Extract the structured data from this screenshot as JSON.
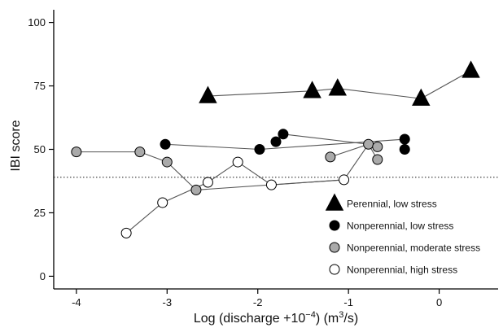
{
  "chart_data": {
    "type": "scatter",
    "title": "",
    "xlabel": "Log (discharge +10",
    "xlabel_sup": "−4",
    "xlabel_tail": ") (m",
    "xlabel_sup2": "3",
    "xlabel_end": "/s)",
    "ylabel": "IBI score",
    "xlim": [
      -4.25,
      0.65
    ],
    "ylim": [
      -5,
      105
    ],
    "x_ticks": [
      -4,
      -3,
      -2,
      -1,
      0
    ],
    "x_tick_labels": [
      "-4",
      "-3",
      "-2",
      "-1",
      "0"
    ],
    "y_ticks": [
      0,
      25,
      50,
      75,
      100
    ],
    "y_tick_labels": [
      "0",
      "25",
      "50",
      "75",
      "100"
    ],
    "reference_line": {
      "y": 39,
      "style": "dotted"
    },
    "grid": false,
    "legend_position": "bottom-right",
    "series": [
      {
        "name": "Perennial, low stress",
        "marker": "triangle",
        "fill": "#000000",
        "stroke": "#000000",
        "points": [
          {
            "x": -2.55,
            "y": 71
          },
          {
            "x": -1.4,
            "y": 73
          },
          {
            "x": -1.12,
            "y": 74
          },
          {
            "x": -0.2,
            "y": 70
          },
          {
            "x": 0.35,
            "y": 81
          }
        ]
      },
      {
        "name": "Nonperennial, low stress",
        "marker": "circle",
        "fill": "#000000",
        "stroke": "#000000",
        "points": [
          {
            "x": -3.02,
            "y": 52
          },
          {
            "x": -1.98,
            "y": 50
          },
          {
            "x": -1.8,
            "y": 53
          },
          {
            "x": -1.72,
            "y": 56
          },
          {
            "x": -0.38,
            "y": 54
          },
          {
            "x": -0.38,
            "y": 50
          }
        ]
      },
      {
        "name": "Nonperennial, moderate stress",
        "marker": "circle",
        "fill": "#aaaaaa",
        "stroke": "#000000",
        "points": [
          {
            "x": -4.0,
            "y": 49
          },
          {
            "x": -3.3,
            "y": 49
          },
          {
            "x": -3.0,
            "y": 45
          },
          {
            "x": -2.68,
            "y": 34
          },
          {
            "x": -1.2,
            "y": 47
          },
          {
            "x": -0.78,
            "y": 52
          },
          {
            "x": -0.68,
            "y": 51
          },
          {
            "x": -0.68,
            "y": 46
          }
        ]
      },
      {
        "name": "Nonperennial, high stress",
        "marker": "circle",
        "fill": "#ffffff",
        "stroke": "#000000",
        "points": [
          {
            "x": -3.45,
            "y": 17
          },
          {
            "x": -3.05,
            "y": 29
          },
          {
            "x": -2.55,
            "y": 37
          },
          {
            "x": -2.22,
            "y": 45
          },
          {
            "x": -1.85,
            "y": 36
          },
          {
            "x": -1.05,
            "y": 38
          }
        ]
      }
    ],
    "connectors": [
      {
        "color": "#555555",
        "points": [
          {
            "x": -2.55,
            "y": 71
          },
          {
            "x": -1.4,
            "y": 73
          },
          {
            "x": -1.12,
            "y": 74
          },
          {
            "x": -0.2,
            "y": 70
          },
          {
            "x": 0.35,
            "y": 81
          }
        ]
      },
      {
        "color": "#555555",
        "points": [
          {
            "x": -3.02,
            "y": 52
          },
          {
            "x": -1.98,
            "y": 50
          },
          {
            "x": -0.38,
            "y": 54
          }
        ]
      },
      {
        "color": "#555555",
        "points": [
          {
            "x": -1.8,
            "y": 53
          },
          {
            "x": -1.72,
            "y": 56
          },
          {
            "x": -0.78,
            "y": 52
          },
          {
            "x": -0.68,
            "y": 46
          }
        ]
      },
      {
        "color": "#555555",
        "points": [
          {
            "x": -4.0,
            "y": 49
          },
          {
            "x": -3.3,
            "y": 49
          },
          {
            "x": -3.0,
            "y": 45
          },
          {
            "x": -2.68,
            "y": 34
          }
        ]
      },
      {
        "color": "#555555",
        "points": [
          {
            "x": -2.68,
            "y": 34
          },
          {
            "x": -1.05,
            "y": 38
          },
          {
            "x": -0.78,
            "y": 52
          }
        ]
      },
      {
        "color": "#555555",
        "points": [
          {
            "x": -1.2,
            "y": 47
          },
          {
            "x": -0.78,
            "y": 52
          },
          {
            "x": -0.68,
            "y": 51
          }
        ]
      },
      {
        "color": "#555555",
        "points": [
          {
            "x": -3.45,
            "y": 17
          },
          {
            "x": -3.05,
            "y": 29
          },
          {
            "x": -2.55,
            "y": 37
          },
          {
            "x": -2.22,
            "y": 45
          },
          {
            "x": -1.85,
            "y": 36
          },
          {
            "x": -1.05,
            "y": 38
          }
        ]
      }
    ]
  }
}
